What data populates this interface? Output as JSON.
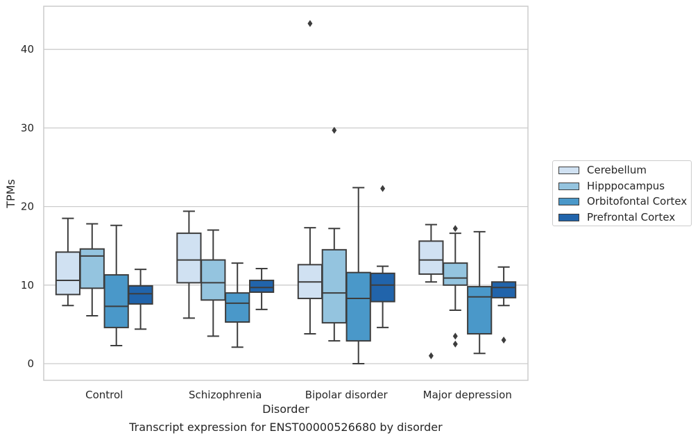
{
  "chart_data": {
    "type": "boxplot",
    "caption": "Transcript expression for ENST00000526680 by disorder",
    "xlabel": "Disorder",
    "ylabel": "TPMs",
    "ylim": [
      -2,
      45
    ],
    "yticks": [
      0,
      10,
      20,
      30,
      40
    ],
    "grid": "horizontal",
    "legend_position": "right",
    "categories": [
      "Control",
      "Schizophrenia",
      "Bipolar disorder",
      "Major depression"
    ],
    "series": [
      {
        "name": "Cerebellum",
        "color": "#d0e1f2",
        "boxes": [
          {
            "whislo": 7.4,
            "q1": 8.8,
            "med": 10.6,
            "q3": 14.2,
            "whishi": 18.5,
            "fliers": []
          },
          {
            "whislo": 5.8,
            "q1": 10.3,
            "med": 13.2,
            "q3": 16.6,
            "whishi": 19.4,
            "fliers": []
          },
          {
            "whislo": 3.8,
            "q1": 8.3,
            "med": 10.4,
            "q3": 12.6,
            "whishi": 17.3,
            "fliers": [
              43.3
            ]
          },
          {
            "whislo": 10.4,
            "q1": 11.4,
            "med": 13.2,
            "q3": 15.6,
            "whishi": 17.7,
            "fliers": [
              1.0
            ]
          }
        ]
      },
      {
        "name": "Hipppocampus",
        "color": "#94c4df",
        "boxes": [
          {
            "whislo": 6.1,
            "q1": 9.6,
            "med": 13.7,
            "q3": 14.6,
            "whishi": 17.8,
            "fliers": []
          },
          {
            "whislo": 3.5,
            "q1": 8.1,
            "med": 10.3,
            "q3": 13.2,
            "whishi": 17.0,
            "fliers": []
          },
          {
            "whislo": 2.9,
            "q1": 5.2,
            "med": 9.0,
            "q3": 14.5,
            "whishi": 17.2,
            "fliers": [
              29.7
            ]
          },
          {
            "whislo": 6.8,
            "q1": 10.0,
            "med": 10.9,
            "q3": 12.8,
            "whishi": 16.6,
            "fliers": [
              17.2,
              3.5,
              2.5
            ]
          }
        ]
      },
      {
        "name": "Orbitofontal Cortex",
        "color": "#4a98c9",
        "boxes": [
          {
            "whislo": 2.3,
            "q1": 4.6,
            "med": 7.3,
            "q3": 11.3,
            "whishi": 17.6,
            "fliers": []
          },
          {
            "whislo": 2.1,
            "q1": 5.3,
            "med": 7.7,
            "q3": 9.0,
            "whishi": 12.8,
            "fliers": []
          },
          {
            "whislo": 0.0,
            "q1": 2.9,
            "med": 8.3,
            "q3": 11.6,
            "whishi": 22.4,
            "fliers": []
          },
          {
            "whislo": 1.3,
            "q1": 3.8,
            "med": 8.5,
            "q3": 9.8,
            "whishi": 16.8,
            "fliers": []
          }
        ]
      },
      {
        "name": "Prefrontal Cortex",
        "color": "#2164ab",
        "boxes": [
          {
            "whislo": 4.4,
            "q1": 7.6,
            "med": 8.9,
            "q3": 9.9,
            "whishi": 12.0,
            "fliers": []
          },
          {
            "whislo": 6.9,
            "q1": 9.1,
            "med": 9.7,
            "q3": 10.6,
            "whishi": 12.1,
            "fliers": []
          },
          {
            "whislo": 4.6,
            "q1": 7.9,
            "med": 10.0,
            "q3": 11.5,
            "whishi": 12.4,
            "fliers": [
              22.3
            ]
          },
          {
            "whislo": 7.4,
            "q1": 8.4,
            "med": 9.7,
            "q3": 10.4,
            "whishi": 12.3,
            "fliers": [
              3.0
            ]
          }
        ]
      }
    ]
  }
}
